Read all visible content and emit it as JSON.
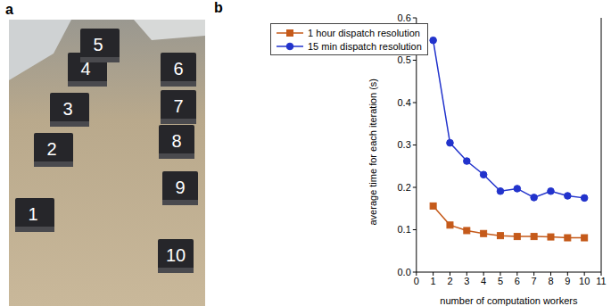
{
  "panel_labels": [
    "a",
    "b"
  ],
  "photo": {
    "labels": [
      "1",
      "2",
      "3",
      "4",
      "5",
      "6",
      "7",
      "8",
      "9",
      "10"
    ]
  },
  "chart_data": {
    "type": "line",
    "x_label": "number of computation workers",
    "y_label": "average time for each iteration (s)",
    "x": [
      1,
      2,
      3,
      4,
      5,
      6,
      7,
      8,
      9,
      10
    ],
    "series": [
      {
        "name": "1 hour dispatch resolution",
        "color": "#c55a1a",
        "marker": "square",
        "values": [
          0.156,
          0.111,
          0.098,
          0.091,
          0.086,
          0.084,
          0.084,
          0.083,
          0.081,
          0.081
        ]
      },
      {
        "name": "15 min dispatch resolution",
        "color": "#2233cc",
        "marker": "circle",
        "values": [
          0.547,
          0.305,
          0.262,
          0.23,
          0.191,
          0.197,
          0.176,
          0.191,
          0.18,
          0.175
        ]
      }
    ],
    "xlim": [
      0,
      11
    ],
    "xticks": [
      0,
      1,
      2,
      3,
      4,
      5,
      6,
      7,
      8,
      9,
      10,
      11
    ],
    "ylim": [
      0,
      0.6
    ],
    "yticks": [
      {
        "value": 0,
        "label": "0.0"
      },
      {
        "value": 0.1,
        "label": "0.1"
      },
      {
        "value": 0.2,
        "label": "0.2"
      },
      {
        "value": 0.3,
        "label": "0.3"
      },
      {
        "value": 0.4,
        "label": "0.4"
      },
      {
        "value": 0.5,
        "label": "0.5"
      },
      {
        "value": 0.6,
        "label": "0.6"
      }
    ],
    "legend": "upper left",
    "grid": false
  }
}
